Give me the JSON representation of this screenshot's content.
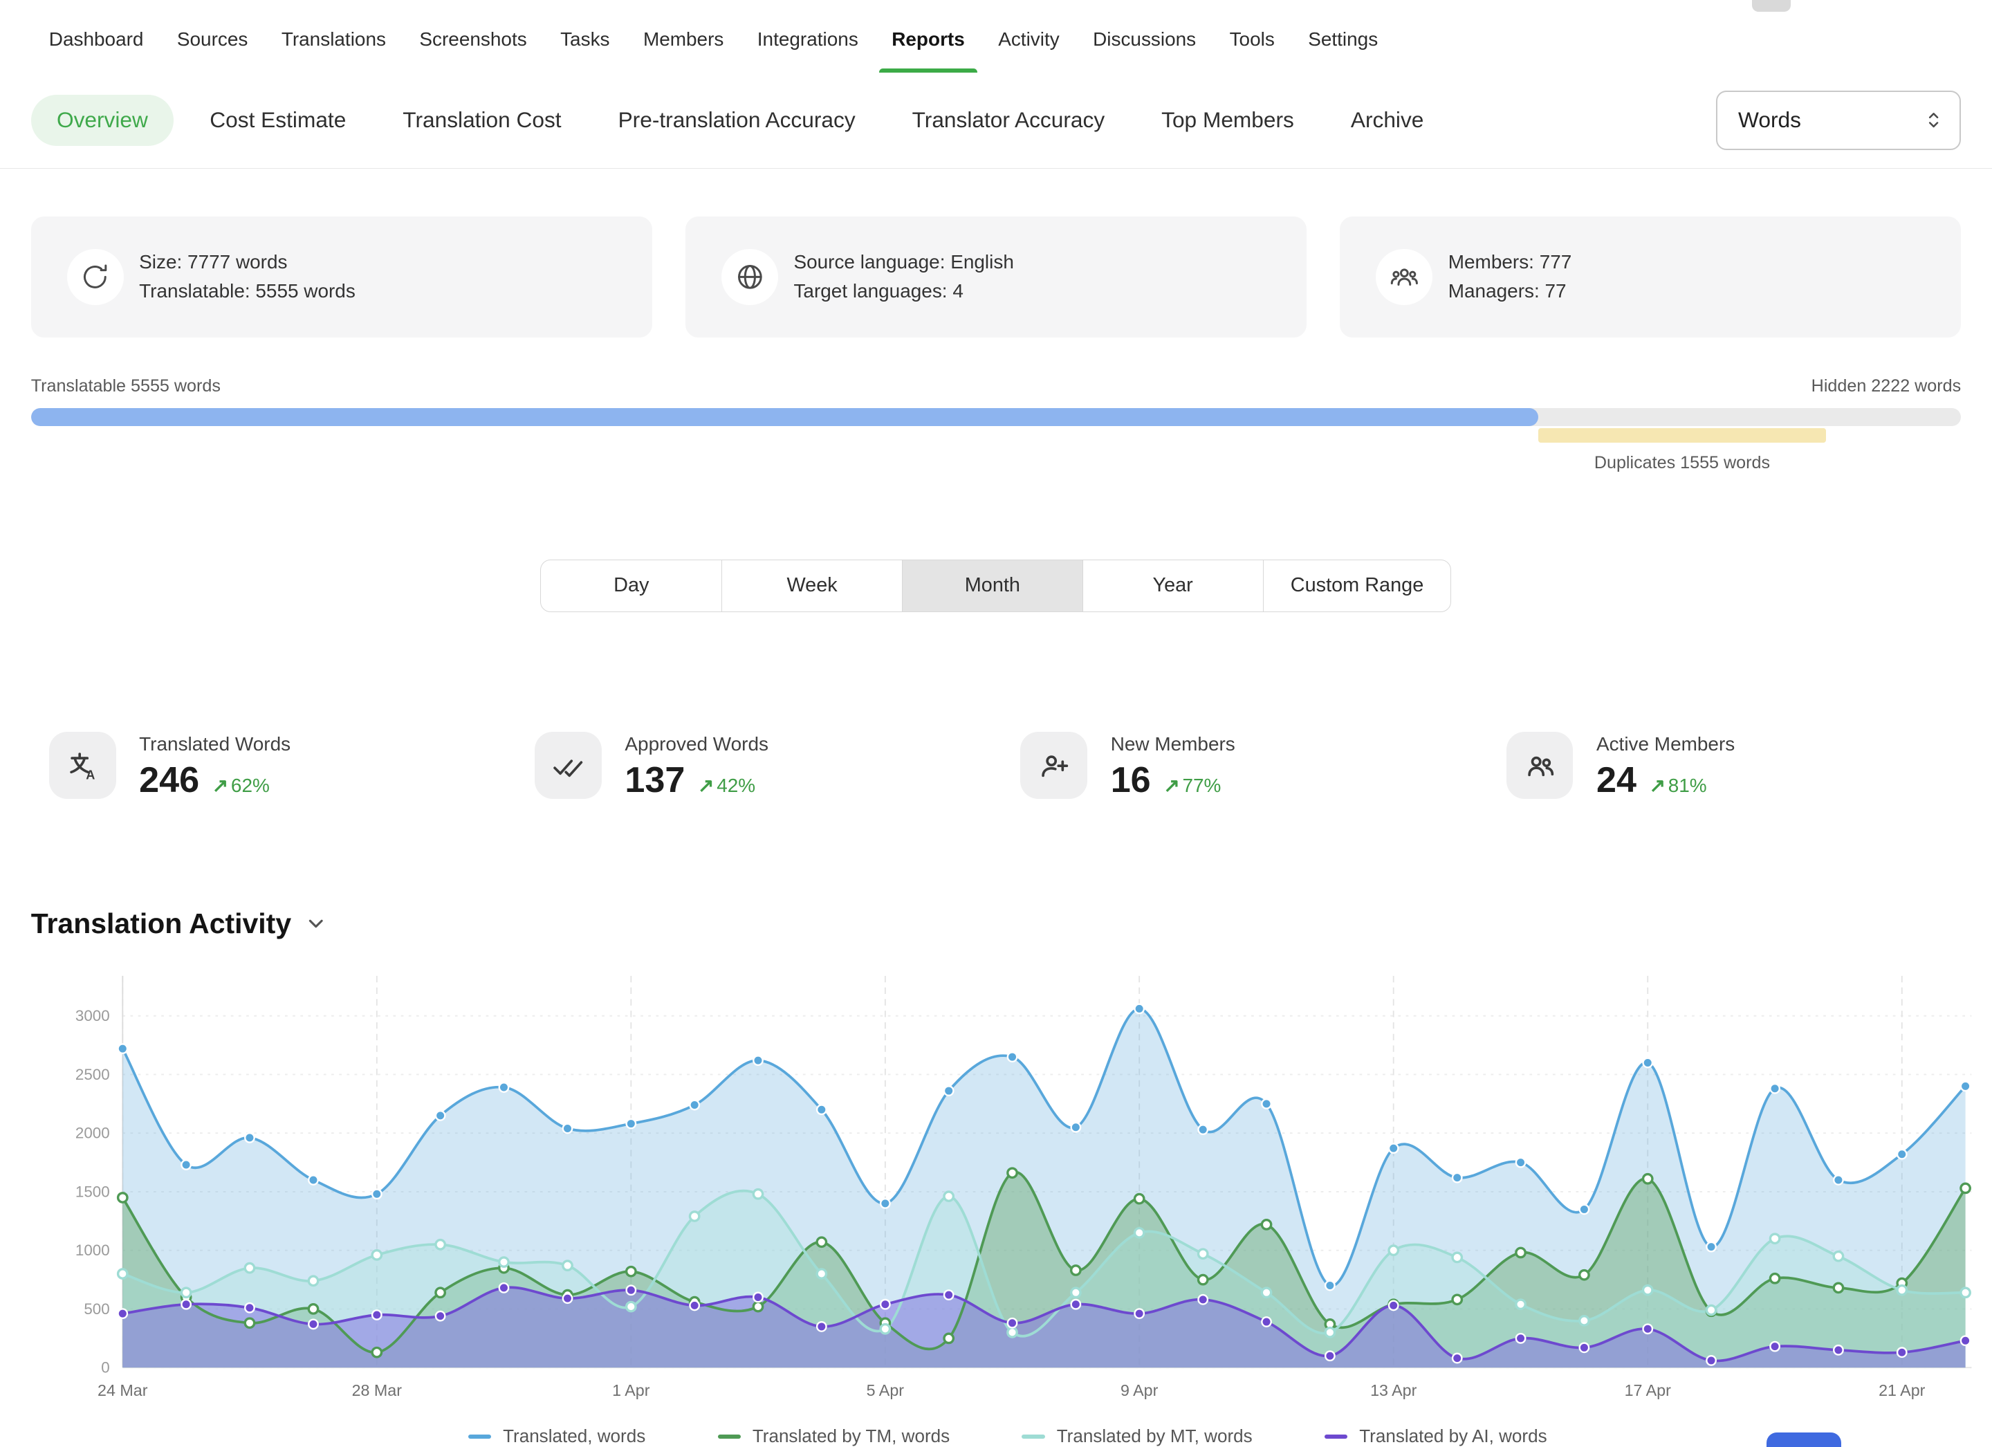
{
  "colors": {
    "accent_green": "#3fa94b",
    "accent_green_bg": "#e9f5ea",
    "nav_underline": "#3cab47",
    "progress_blue": "#8db4ef",
    "progress_track": "#eaeaea",
    "duplicates_yellow": "#f6e7b2"
  },
  "icons": {
    "trend_up_arrow": "↗"
  },
  "nav": {
    "items": [
      "Dashboard",
      "Sources",
      "Translations",
      "Screenshots",
      "Tasks",
      "Members",
      "Integrations",
      "Reports",
      "Activity",
      "Discussions",
      "Tools",
      "Settings"
    ],
    "active": "Reports"
  },
  "subtabs": {
    "items": [
      "Overview",
      "Cost Estimate",
      "Translation Cost",
      "Pre-translation Accuracy",
      "Translator Accuracy",
      "Top Members",
      "Archive"
    ],
    "active": "Overview",
    "unit_select": {
      "value": "Words"
    }
  },
  "summary_cards": [
    {
      "icon": "sync-icon",
      "line1": "Size: 7777 words",
      "line2": "Translatable: 5555 words"
    },
    {
      "icon": "globe-icon",
      "line1": "Source language: English",
      "line2": "Target languages: 4"
    },
    {
      "icon": "members-icon",
      "line1": "Members: 777",
      "line2": "Managers: 77"
    }
  ],
  "progress": {
    "left_label": "Translatable 5555 words",
    "right_label": "Hidden 2222 words",
    "duplicates_label": "Duplicates 1555 words",
    "translatable_pct": 78.1,
    "duplicates_start_pct": 78.1,
    "duplicates_width_pct": 14.9,
    "bar_color": "#8db4ef",
    "track_color": "#eaeaea",
    "duplicates_color": "#f6e7b2"
  },
  "range_tabs": {
    "items": [
      "Day",
      "Week",
      "Month",
      "Year",
      "Custom Range"
    ],
    "active": "Month"
  },
  "stat_cards": [
    {
      "icon": "translate-icon",
      "label": "Translated Words",
      "value": "246",
      "delta": "62%"
    },
    {
      "icon": "double-check-icon",
      "label": "Approved Words",
      "value": "137",
      "delta": "42%"
    },
    {
      "icon": "person-add-icon",
      "label": "New Members",
      "value": "16",
      "delta": "77%"
    },
    {
      "icon": "people-icon",
      "label": "Active Members",
      "value": "24",
      "delta": "81%"
    }
  ],
  "activity": {
    "title": "Translation Activity"
  },
  "chart_data": {
    "type": "area",
    "title": "Translation Activity",
    "points_count": 30,
    "x_tick_labels": [
      "24 Mar",
      "28 Mar",
      "1 Apr",
      "5 Apr",
      "9 Apr",
      "13 Apr",
      "17 Apr",
      "21 Apr"
    ],
    "x_tick_indices": [
      0,
      4,
      8,
      12,
      16,
      20,
      24,
      28
    ],
    "y_ticks": [
      0,
      500,
      1000,
      1500,
      2000,
      2500,
      3000
    ],
    "ylim": [
      0,
      3340
    ],
    "grid": true,
    "legend_position": "bottom",
    "series": [
      {
        "name": "Translated, words",
        "color": "#58a7db",
        "fill": "rgba(106,174,221,0.30)",
        "dot": "solid",
        "values": [
          2720,
          1730,
          1960,
          1600,
          1480,
          2150,
          2390,
          2040,
          2080,
          2240,
          2620,
          2200,
          1400,
          2360,
          2650,
          2050,
          3060,
          2030,
          2250,
          700,
          1870,
          1620,
          1750,
          1350,
          2600,
          1030,
          2380,
          1600,
          1820,
          2400
        ]
      },
      {
        "name": "Translated by TM, words",
        "color": "#4f9a55",
        "fill": "rgba(104,168,110,0.45)",
        "dot": "hollow",
        "values": [
          1450,
          600,
          380,
          500,
          130,
          640,
          850,
          620,
          820,
          560,
          520,
          1070,
          380,
          250,
          1660,
          830,
          1440,
          750,
          1220,
          370,
          540,
          580,
          980,
          790,
          1610,
          480,
          760,
          680,
          720,
          1530
        ]
      },
      {
        "name": "Translated by MT, words",
        "color": "#9edcd4",
        "fill": "rgba(170,225,218,0.35)",
        "dot": "hollow",
        "values": [
          800,
          640,
          850,
          740,
          960,
          1050,
          900,
          870,
          520,
          1290,
          1480,
          800,
          330,
          1460,
          300,
          640,
          1150,
          970,
          640,
          300,
          1000,
          940,
          540,
          400,
          660,
          490,
          1100,
          950,
          660,
          640
        ]
      },
      {
        "name": "Translated by AI, words",
        "color": "#6d49cf",
        "fill": "rgba(130,110,225,0.50)",
        "dot": "solid",
        "values": [
          460,
          540,
          510,
          370,
          450,
          440,
          680,
          590,
          660,
          530,
          600,
          350,
          540,
          620,
          380,
          540,
          460,
          580,
          390,
          100,
          530,
          80,
          250,
          170,
          330,
          60,
          180,
          150,
          130,
          230
        ]
      }
    ]
  }
}
